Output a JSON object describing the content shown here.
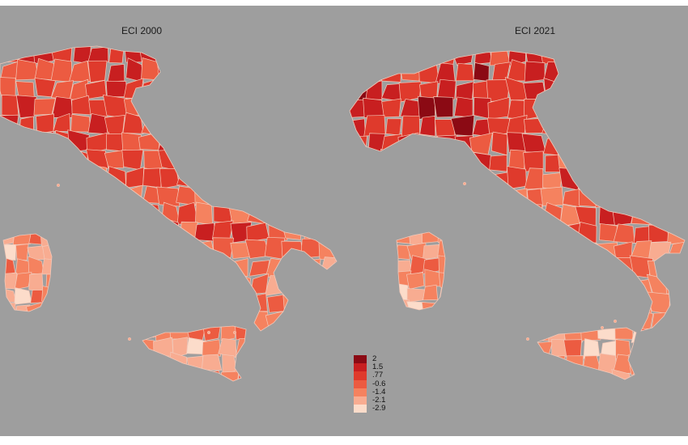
{
  "maps": [
    {
      "id": "eci-2000",
      "title": "ECI 2000"
    },
    {
      "id": "eci-2021",
      "title": "ECI 2021"
    }
  ],
  "legend": {
    "items": [
      {
        "label": "2",
        "color": "#8b0a14"
      },
      {
        "label": "1.5",
        "color": "#c81f20"
      },
      {
        "label": ".77",
        "color": "#df3a2c"
      },
      {
        "label": "-0.6",
        "color": "#ec5b41"
      },
      {
        "label": "-1.4",
        "color": "#f5825f"
      },
      {
        "label": "-2.1",
        "color": "#f8ac91"
      },
      {
        "label": "-2.9",
        "color": "#fcdcca"
      }
    ]
  },
  "colors": {
    "background": "#9e9e9e",
    "boundary": "#f3c8b8"
  }
}
